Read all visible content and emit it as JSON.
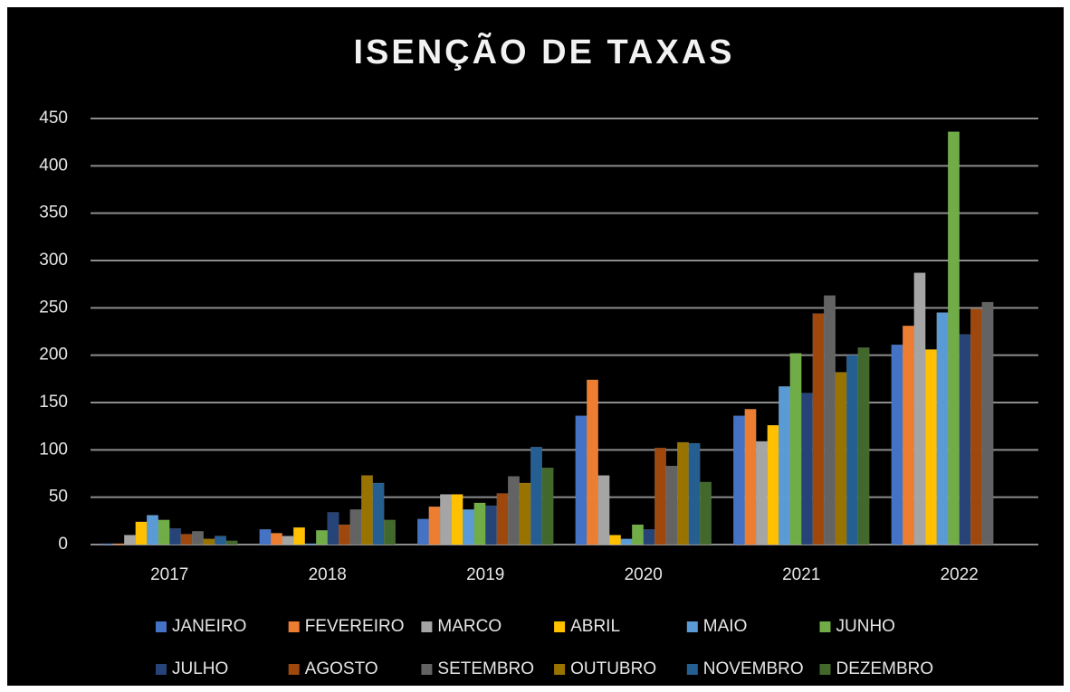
{
  "chart_data": {
    "type": "bar",
    "title": "ISENÇÃO DE TAXAS",
    "categories": [
      "2017",
      "2018",
      "2019",
      "2020",
      "2021",
      "2022"
    ],
    "series": [
      {
        "name": "JANEIRO",
        "color": "#4472c4",
        "values": [
          1,
          16,
          27,
          136,
          136,
          211
        ]
      },
      {
        "name": "FEVEREIRO",
        "color": "#ed7d31",
        "values": [
          1,
          12,
          40,
          174,
          143,
          231
        ]
      },
      {
        "name": "MARCO",
        "color": "#a5a5a5",
        "values": [
          10,
          9,
          53,
          73,
          109,
          287
        ]
      },
      {
        "name": "ABRIL",
        "color": "#ffc000",
        "values": [
          24,
          18,
          53,
          10,
          126,
          206
        ]
      },
      {
        "name": "MAIO",
        "color": "#5b9bd5",
        "values": [
          31,
          1,
          37,
          6,
          167,
          245
        ]
      },
      {
        "name": "JUNHO",
        "color": "#70ad47",
        "values": [
          26,
          15,
          44,
          21,
          202,
          436
        ]
      },
      {
        "name": "JULHO",
        "color": "#264478",
        "values": [
          17,
          34,
          41,
          16,
          160,
          222
        ]
      },
      {
        "name": "AGOSTO",
        "color": "#9e480e",
        "values": [
          11,
          21,
          54,
          102,
          244,
          249
        ]
      },
      {
        "name": "SETEMBRO",
        "color": "#636363",
        "values": [
          14,
          37,
          72,
          83,
          263,
          256
        ]
      },
      {
        "name": "OUTUBRO",
        "color": "#997300",
        "values": [
          6,
          73,
          65,
          108,
          182,
          null
        ]
      },
      {
        "name": "NOVEMBRO",
        "color": "#255e91",
        "values": [
          9,
          65,
          103,
          107,
          200,
          null
        ]
      },
      {
        "name": "DEZEMBRO",
        "color": "#43682b",
        "values": [
          4,
          26,
          81,
          66,
          208,
          null
        ]
      }
    ],
    "ylim": [
      0,
      450
    ],
    "yticks": [
      0,
      50,
      100,
      150,
      200,
      250,
      300,
      350,
      400,
      450
    ],
    "grid": true,
    "legend": "bottom"
  }
}
